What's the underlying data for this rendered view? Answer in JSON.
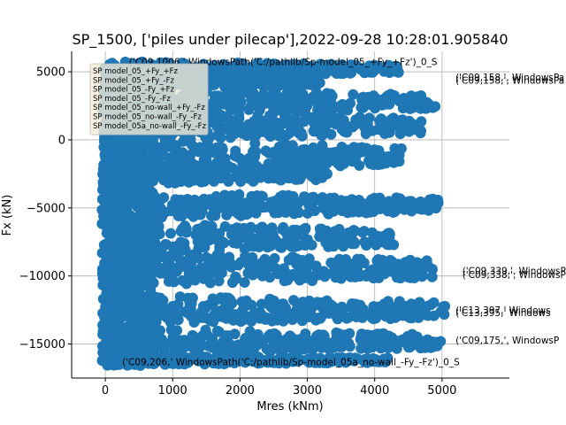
{
  "chart_data": {
    "type": "scatter",
    "title": "SP_1500, ['piles under pilecap'],2022-09-28 10:28:01.905840",
    "xlabel": "Mres (kNm)",
    "ylabel": "Fx (kN)",
    "xlim": [
      -500,
      6000
    ],
    "ylim": [
      -17500,
      6500
    ],
    "xticks": [
      0,
      1000,
      2000,
      3000,
      4000,
      5000
    ],
    "yticks": [
      -15000,
      -10000,
      -5000,
      0,
      5000
    ],
    "xtick_labels": [
      "0",
      "1000",
      "2000",
      "3000",
      "4000",
      "5000"
    ],
    "ytick_labels": [
      "−15000",
      "−10000",
      "−5000",
      "0",
      "5000"
    ],
    "grid": true,
    "legend_position": "top-left",
    "marker_color": "#1f77b4",
    "bands": [
      {
        "y": 5200,
        "x_max": 4400,
        "spread": 420
      },
      {
        "y": 4300,
        "x_max": 3200,
        "spread": 500
      },
      {
        "y": 2800,
        "x_max": 4900,
        "spread": 700
      },
      {
        "y": 1000,
        "x_max": 4700,
        "spread": 800
      },
      {
        "y": -1200,
        "x_max": 4400,
        "spread": 900
      },
      {
        "y": -2500,
        "x_max": 3300,
        "spread": 600
      },
      {
        "y": -4800,
        "x_max": 5000,
        "spread": 700
      },
      {
        "y": -7200,
        "x_max": 4300,
        "spread": 800
      },
      {
        "y": -9500,
        "x_max": 4900,
        "spread": 900
      },
      {
        "y": -12500,
        "x_max": 5100,
        "spread": 800
      },
      {
        "y": -14800,
        "x_max": 5000,
        "spread": 700
      },
      {
        "y": -16200,
        "x_max": 4200,
        "spread": 250
      }
    ],
    "series": [
      {
        "name": "SP model_05_+Fy_+Fz"
      },
      {
        "name": "SP model_05_+Fy_-Fz"
      },
      {
        "name": "SP model_05_-Fy_+Fz"
      },
      {
        "name": "SP model_05_-Fy_-Fz"
      },
      {
        "name": "SP model_05_no-wall_+Fy_-Fz"
      },
      {
        "name": "SP model_05_no-wall_-Fy_-Fz"
      },
      {
        "name": "SP model_05a_no-wall_-Fy_-Fz"
      }
    ],
    "annotations": [
      {
        "text": "('C09,158,', WindowsPa",
        "x": 5200,
        "y": 4600
      },
      {
        "text": "('C09,158,', WindowsPa",
        "x": 5200,
        "y": 4400
      },
      {
        "text": "('C09,339,', WindowsP",
        "x": 5300,
        "y": -9600
      },
      {
        "text": "('C09,338,', WindowsP",
        "x": 5300,
        "y": -9900
      },
      {
        "text": "('C13,397,' Windows",
        "x": 5200,
        "y": -12500
      },
      {
        "text": "('C13,395,' Windows",
        "x": 5200,
        "y": -12700
      },
      {
        "text": "('C09,175,', WindowsP",
        "x": 5200,
        "y": -14700
      },
      {
        "text": "('C09,206,' WindowsPath('C:/pathlib/Sp-model_05a_no-wall_-Fy_-Fz')_0_S",
        "x": 250,
        "y": -16300
      },
      {
        "text": "('C09,1006,' WindowsPath('C:/pathlib/Sp-model_05_+Fy_+Fz')_0_S",
        "x": 350,
        "y": 5750
      }
    ]
  }
}
